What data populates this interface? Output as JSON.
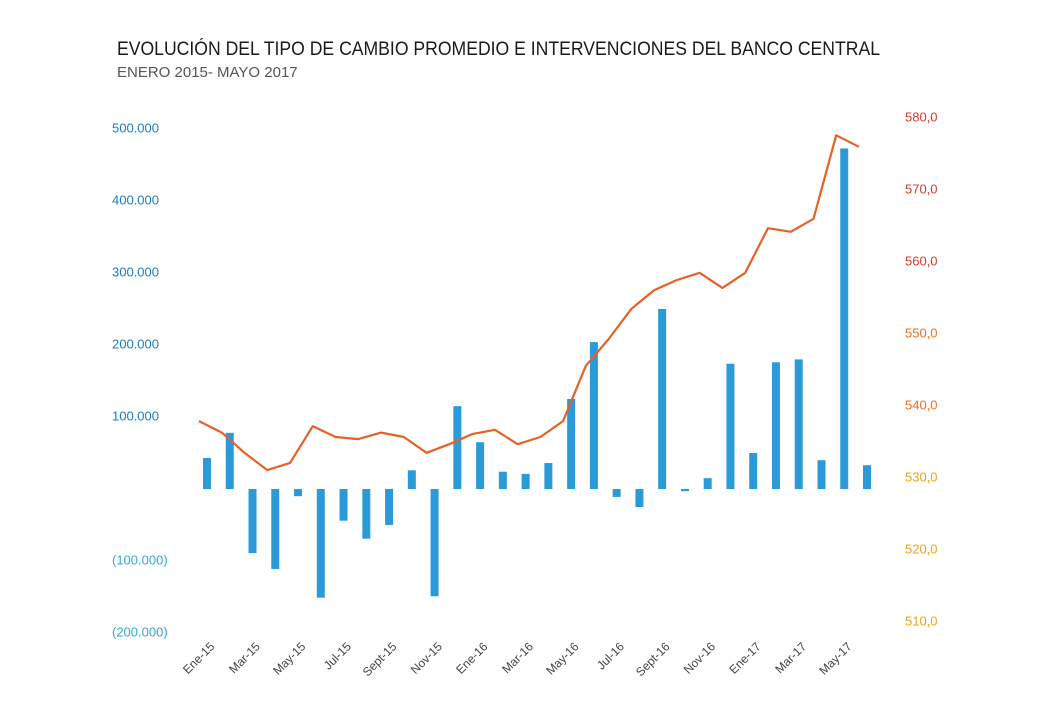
{
  "chart_data": {
    "type": "bar-line",
    "title": "EVOLUCIÓN DEL TIPO DE CAMBIO PROMEDIO E INTERVENCIONES DEL BANCO CENTRAL",
    "subtitle": "ENERO 2015- MAYO 2017",
    "categories": [
      "Ene-15",
      null,
      "Mar-15",
      null,
      "May-15",
      null,
      "Jul-15",
      null,
      "Sept-15",
      null,
      "Nov-15",
      null,
      "Ene-16",
      null,
      "Mar-16",
      null,
      "May-16",
      null,
      "Jul-16",
      null,
      "Sept-16",
      null,
      "Nov-16",
      null,
      "Ene-17",
      null,
      "Mar-17",
      null,
      "May-17",
      null
    ],
    "series": [
      {
        "type": "bar",
        "color": "#2a9bd8",
        "values": [
          43000,
          78000,
          -89000,
          -111000,
          -10000,
          -151000,
          -44000,
          -69000,
          -50000,
          26000,
          -149000,
          115000,
          65000,
          24000,
          21000,
          36000,
          125000,
          204000,
          -11000,
          -25000,
          250000,
          -3000,
          15000,
          174000,
          50000,
          176000,
          180000,
          40000,
          473000,
          33000
        ]
      },
      {
        "type": "line",
        "axis": "y2",
        "color": "#e4622a",
        "values": [
          537.9,
          536.3,
          533.5,
          531.1,
          532.1,
          537.2,
          535.7,
          535.4,
          536.3,
          535.7,
          533.5,
          534.7,
          536.1,
          536.7,
          534.7,
          535.7,
          537.9,
          545.6,
          549.3,
          553.5,
          556.1,
          557.5,
          558.5,
          556.4,
          558.5,
          564.7,
          564.2,
          566.0,
          577.6,
          576.0
        ]
      }
    ],
    "ylim": [
      -200000,
      500000
    ],
    "yticks": [
      {
        "value": -200000,
        "label": "(200.000)"
      },
      {
        "value": -100000,
        "label": "(100.000)"
      },
      {
        "value": 100000,
        "label": "100.000"
      },
      {
        "value": 200000,
        "label": "200.000"
      },
      {
        "value": 300000,
        "label": "300.000"
      },
      {
        "value": 400000,
        "label": "400.000"
      },
      {
        "value": 500000,
        "label": "500.000"
      }
    ],
    "y2lim": [
      510,
      580
    ],
    "y2ticks": [
      {
        "value": 510,
        "label": "510,0"
      },
      {
        "value": 520,
        "label": "520,0"
      },
      {
        "value": 530,
        "label": "530,0"
      },
      {
        "value": 540,
        "label": "540,0"
      },
      {
        "value": 550,
        "label": "550,0"
      },
      {
        "value": 560,
        "label": "560,0"
      },
      {
        "value": 570,
        "label": "570,0"
      },
      {
        "value": 580,
        "label": "580,0"
      }
    ],
    "grid": false
  }
}
